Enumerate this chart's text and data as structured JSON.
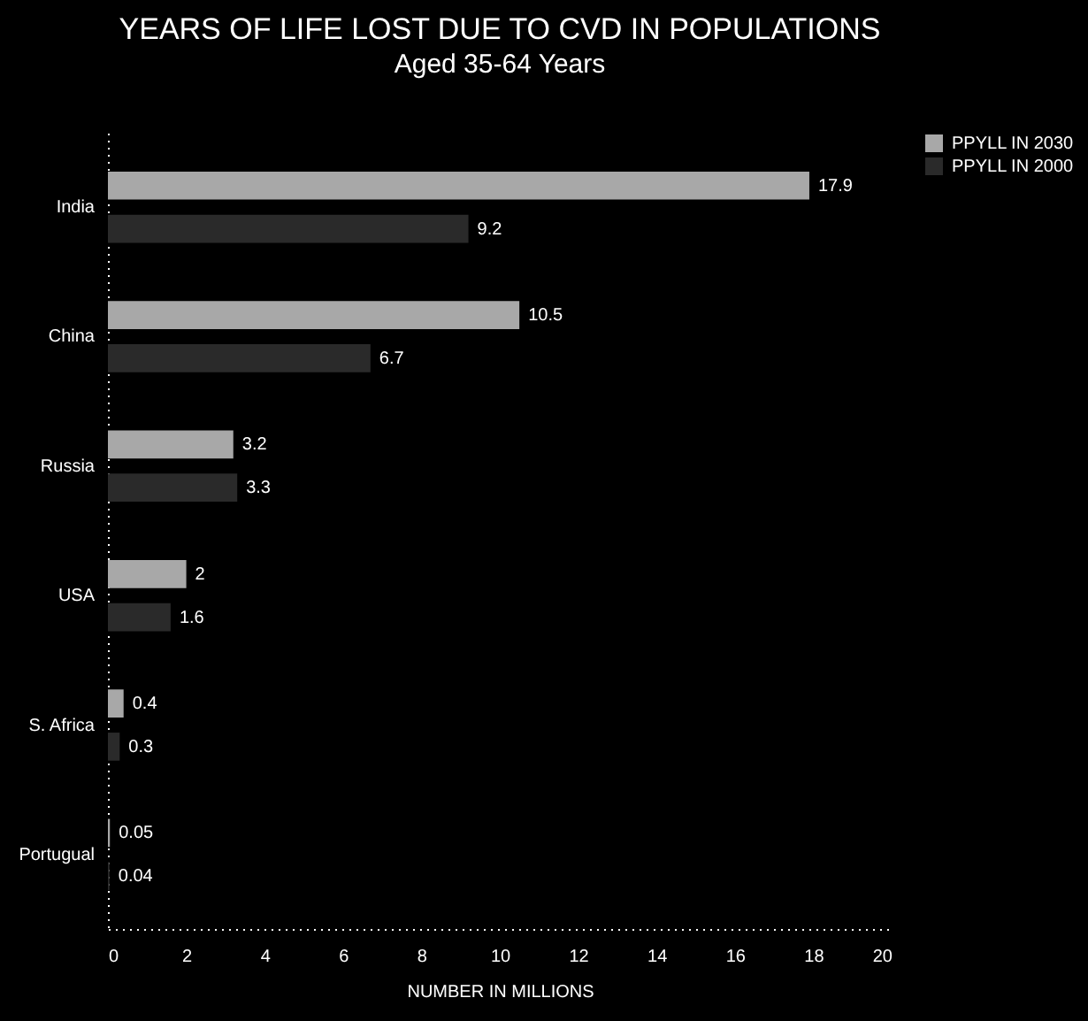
{
  "chart_data": {
    "type": "bar",
    "orientation": "horizontal",
    "title": "YEARS OF LIFE LOST DUE TO CVD IN POPULATIONS",
    "subtitle": "Aged 35-64 Years",
    "xlabel": "NUMBER IN MILLIONS",
    "categories": [
      "India",
      "China",
      "Russia",
      "USA",
      "S. Africa",
      "Portugual"
    ],
    "series": [
      {
        "name": "PPYLL IN 2030",
        "color": "#a8a8a8",
        "values": [
          17.9,
          10.5,
          3.2,
          2,
          0.4,
          0.05
        ]
      },
      {
        "name": "PPYLL IN 2000",
        "color": "#2a2a2a",
        "values": [
          9.2,
          6.7,
          3.3,
          1.6,
          0.3,
          0.04
        ]
      }
    ],
    "xlim": [
      0,
      20
    ],
    "xticks": [
      0,
      2,
      4,
      6,
      8,
      10,
      12,
      14,
      16,
      18,
      20
    ],
    "data_labels": true,
    "grid": false,
    "legend": "right"
  }
}
